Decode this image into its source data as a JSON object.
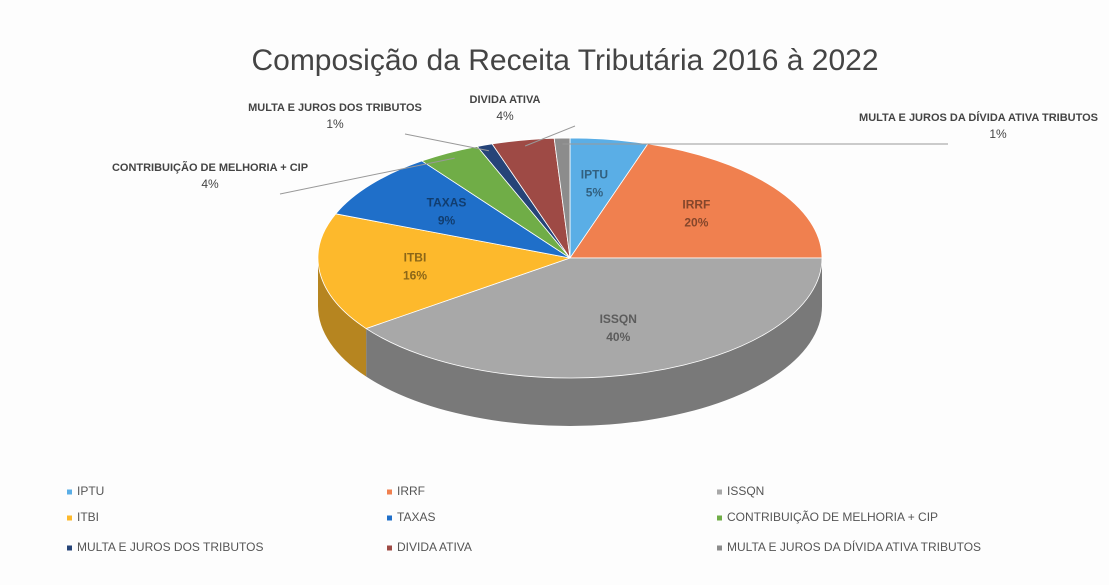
{
  "chart_data": {
    "type": "pie3d",
    "title": "Composição da Receita Tributária 2016 à 2022",
    "categories": [
      "IPTU",
      "IRRF",
      "ISSQN",
      "ITBI",
      "TAXAS",
      "CONTRIBUIÇÃO DE MELHORIA + CIP",
      "MULTA E JUROS DOS TRIBUTOS",
      "DIVIDA ATIVA",
      "MULTA E JUROS DA DÍVIDA ATIVA TRIBUTOS"
    ],
    "values": [
      5,
      20,
      40,
      16,
      9,
      4,
      1,
      4,
      1
    ],
    "value_labels": [
      "5%",
      "20%",
      "40%",
      "16%",
      "9%",
      "4%",
      "1%",
      "4%",
      "1%"
    ],
    "colors": [
      "#5aaee6",
      "#f0804f",
      "#a8a8a8",
      "#fdb92c",
      "#1f6fc9",
      "#70ad47",
      "#264478",
      "#9e4a45",
      "#8c8c8c"
    ]
  }
}
